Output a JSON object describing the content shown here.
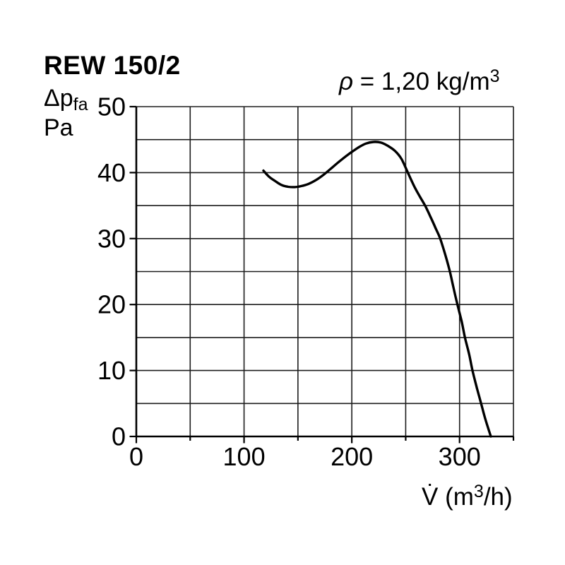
{
  "header": {
    "title": "REW 150/2"
  },
  "annotation": {
    "symbol": "ρ",
    "body": " = 1,20 kg/m",
    "sup": "3"
  },
  "y_axis_unit": {
    "delta_p": "Δp",
    "sub": "fa",
    "unit": "Pa"
  },
  "x_axis_unit": {
    "v": "V̇",
    "body": " (m",
    "sup": "3",
    "tail": "/h)"
  },
  "chart_data": {
    "type": "line",
    "title": "REW 150/2",
    "subtitle": "ρ = 1,20 kg/m³",
    "xlabel": "V̇ (m³/h)",
    "ylabel": "Δpfa Pa",
    "xlim": [
      0,
      350
    ],
    "ylim": [
      0,
      50
    ],
    "x_grid_step": 50,
    "y_grid_step": 5,
    "x_ticks": [
      0,
      100,
      200,
      300
    ],
    "y_ticks": [
      0,
      10,
      20,
      30,
      40,
      50
    ],
    "grid": true,
    "legend": "none",
    "colors": {
      "line": "#000000",
      "grid": "#1c1c1c",
      "axis": "#000000"
    },
    "series": [
      {
        "name": "fan-pressure-curve",
        "points": [
          [
            118,
            40.3
          ],
          [
            123,
            39.4
          ],
          [
            129,
            38.7
          ],
          [
            135,
            38.1
          ],
          [
            141,
            37.85
          ],
          [
            147,
            37.8
          ],
          [
            153,
            37.95
          ],
          [
            160,
            38.3
          ],
          [
            167,
            38.9
          ],
          [
            174,
            39.7
          ],
          [
            182,
            40.8
          ],
          [
            190,
            41.9
          ],
          [
            198,
            42.9
          ],
          [
            206,
            43.8
          ],
          [
            213,
            44.4
          ],
          [
            220,
            44.65
          ],
          [
            227,
            44.55
          ],
          [
            233,
            44.1
          ],
          [
            240,
            43.3
          ],
          [
            246,
            42.1
          ],
          [
            252,
            40.0
          ],
          [
            258,
            37.9
          ],
          [
            263,
            36.4
          ],
          [
            268,
            35.0
          ],
          [
            273,
            33.3
          ],
          [
            278,
            31.5
          ],
          [
            282,
            30.0
          ],
          [
            287,
            27.4
          ],
          [
            291,
            25.0
          ],
          [
            294,
            22.8
          ],
          [
            298,
            20.0
          ],
          [
            302,
            17.4
          ],
          [
            305,
            15.0
          ],
          [
            309,
            12.4
          ],
          [
            312,
            10.0
          ],
          [
            316,
            7.4
          ],
          [
            320,
            5.0
          ],
          [
            324,
            2.6
          ],
          [
            329,
            0.0
          ]
        ]
      }
    ]
  }
}
